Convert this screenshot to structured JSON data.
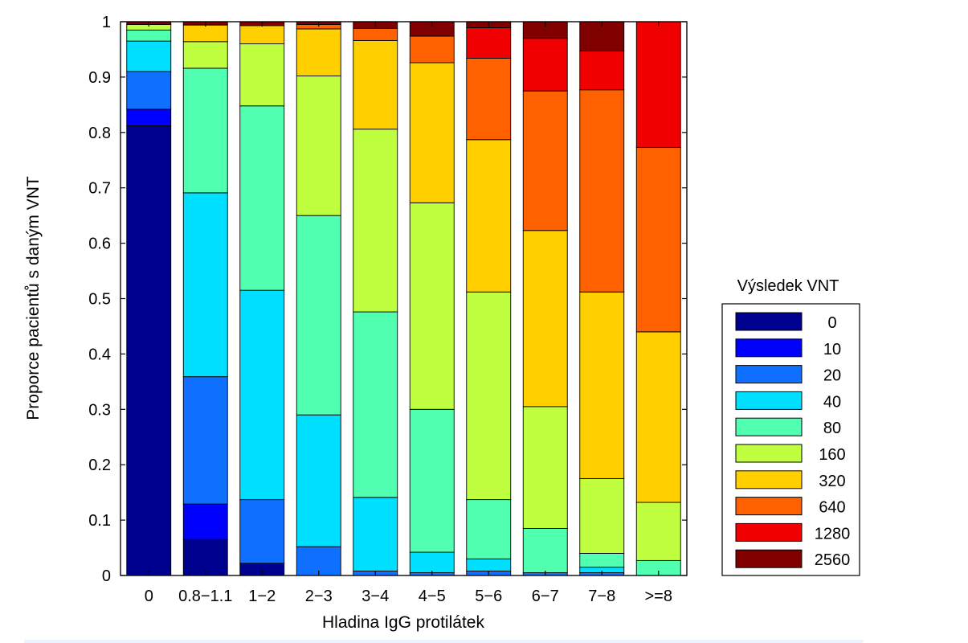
{
  "chart_data": {
    "type": "bar",
    "stacked": true,
    "title": "",
    "xlabel": "Hladina IgG protilátek",
    "ylabel": "Proporce pacientů s daným VNT",
    "ylim": [
      0,
      1
    ],
    "yticks": [
      "0",
      "0.1",
      "0.2",
      "0.3",
      "0.4",
      "0.5",
      "0.6",
      "0.7",
      "0.8",
      "0.9",
      "1"
    ],
    "categories": [
      "0",
      "0.8−1.1",
      "1−2",
      "2−3",
      "3−4",
      "4−5",
      "5−6",
      "6−7",
      "7−8",
      ">=8"
    ],
    "tick_labels": [
      "0",
      "0.8−1.1",
      "1−2",
      "2−3",
      "3−4",
      "4−5",
      "5−6",
      "6−7",
      "7−8",
      ">=8"
    ],
    "legend_title": "Výsledek VNT",
    "legend_position": "right",
    "series": [
      {
        "name": "0",
        "color": "#00008f",
        "values": [
          0.812,
          0.065,
          0.022,
          0.0,
          0.0,
          0.0,
          0.0,
          0.0,
          0.0,
          0.0
        ]
      },
      {
        "name": "10",
        "color": "#0000ff",
        "values": [
          0.03,
          0.064,
          0.0,
          0.0,
          0.0,
          0.0,
          0.0,
          0.0,
          0.0,
          0.0
        ]
      },
      {
        "name": "20",
        "color": "#0f6fff",
        "values": [
          0.068,
          0.23,
          0.115,
          0.052,
          0.008,
          0.005,
          0.008,
          0.005,
          0.005,
          0.0
        ]
      },
      {
        "name": "40",
        "color": "#00dfff",
        "values": [
          0.055,
          0.332,
          0.378,
          0.238,
          0.133,
          0.037,
          0.022,
          0.0,
          0.01,
          0.0
        ]
      },
      {
        "name": "80",
        "color": "#50ffaf",
        "values": [
          0.02,
          0.225,
          0.333,
          0.36,
          0.335,
          0.258,
          0.107,
          0.08,
          0.025,
          0.027
        ]
      },
      {
        "name": "160",
        "color": "#bfff40",
        "values": [
          0.01,
          0.048,
          0.112,
          0.252,
          0.33,
          0.373,
          0.375,
          0.22,
          0.135,
          0.105
        ]
      },
      {
        "name": "320",
        "color": "#ffcf00",
        "values": [
          0.0,
          0.03,
          0.033,
          0.085,
          0.16,
          0.253,
          0.275,
          0.318,
          0.337,
          0.308
        ]
      },
      {
        "name": "640",
        "color": "#ff6000",
        "values": [
          0.0,
          0.0,
          0.0,
          0.008,
          0.022,
          0.048,
          0.147,
          0.252,
          0.365,
          0.333
        ]
      },
      {
        "name": "1280",
        "color": "#f00000",
        "values": [
          0.0,
          0.0,
          0.0,
          0.0,
          0.0,
          0.0,
          0.055,
          0.095,
          0.07,
          0.227
        ]
      },
      {
        "name": "2560",
        "color": "#800000",
        "values": [
          0.005,
          0.006,
          0.007,
          0.005,
          0.012,
          0.026,
          0.011,
          0.03,
          0.053,
          0.0
        ]
      }
    ]
  }
}
